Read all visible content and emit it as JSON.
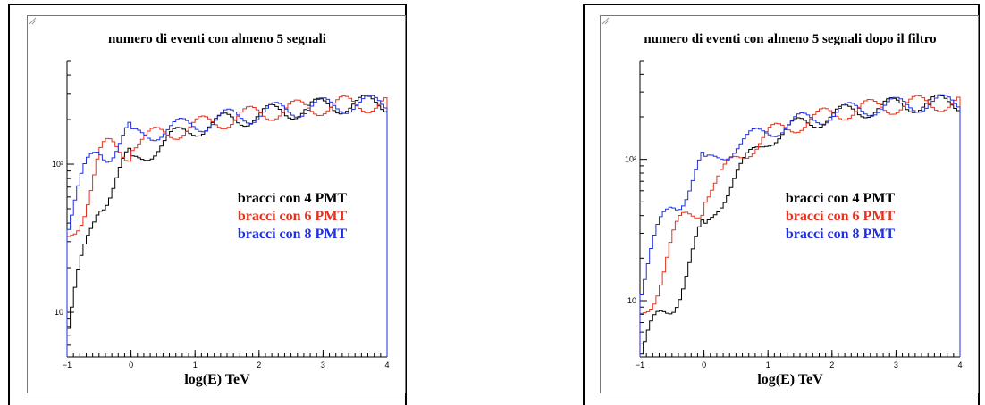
{
  "colors": {
    "series_4pmt": "#000000",
    "series_6pmt": "#e8301c",
    "series_8pmt": "#1f2ee0"
  },
  "chart_data": [
    {
      "type": "histogram",
      "title": "numero di eventi con almeno 5 segnali",
      "xlabel": "log(E) TeV",
      "ylabel": "",
      "xlim": [
        -1,
        4
      ],
      "ylim": [
        5,
        500
      ],
      "yscale": "log",
      "x_ticks": [
        "−1",
        "0",
        "1",
        "2",
        "3",
        "4"
      ],
      "y_ticks": [
        "10",
        "10²"
      ],
      "legend_position": "center-right",
      "grid": false,
      "x": [
        -1.0,
        -0.5,
        0.0,
        0.5,
        1.0,
        1.5,
        2.0,
        2.5,
        3.0,
        3.5,
        4.0
      ],
      "series": [
        {
          "name": "bracci con 4 PMT",
          "color": "#000000",
          "values": [
            7,
            60,
            100,
            140,
            175,
            195,
            215,
            230,
            245,
            255,
            255
          ]
        },
        {
          "name": "bracci con 6 PMT",
          "color": "#e8301c",
          "values": [
            28,
            105,
            140,
            160,
            180,
            200,
            220,
            235,
            245,
            255,
            255
          ]
        },
        {
          "name": "bracci con 8 PMT",
          "color": "#1f2ee0",
          "values": [
            40,
            130,
            150,
            170,
            185,
            205,
            220,
            235,
            245,
            255,
            255
          ]
        }
      ]
    },
    {
      "type": "histogram",
      "title": "numero di eventi con almeno 5 segnali dopo il filtro",
      "xlabel": "log(E) TeV",
      "ylabel": "",
      "xlim": [
        -1,
        4
      ],
      "ylim": [
        4,
        500
      ],
      "yscale": "log",
      "x_ticks": [
        "−1",
        "0",
        "1",
        "2",
        "3",
        "4"
      ],
      "y_ticks": [
        "10",
        "10²"
      ],
      "legend_position": "center-right",
      "grid": false,
      "x": [
        -1.0,
        -0.5,
        0.0,
        0.5,
        1.0,
        1.5,
        2.0,
        2.5,
        3.0,
        3.5,
        4.0
      ],
      "series": [
        {
          "name": "bracci con 4 PMT",
          "color": "#000000",
          "values": [
            4,
            10,
            30,
            80,
            140,
            175,
            205,
            225,
            240,
            250,
            250
          ]
        },
        {
          "name": "bracci con 6 PMT",
          "color": "#e8301c",
          "values": [
            7,
            25,
            55,
            100,
            150,
            180,
            210,
            230,
            240,
            250,
            250
          ]
        },
        {
          "name": "bracci con 8 PMT",
          "color": "#1f2ee0",
          "values": [
            12,
            50,
            90,
            125,
            160,
            185,
            210,
            230,
            240,
            250,
            250
          ]
        }
      ]
    }
  ]
}
